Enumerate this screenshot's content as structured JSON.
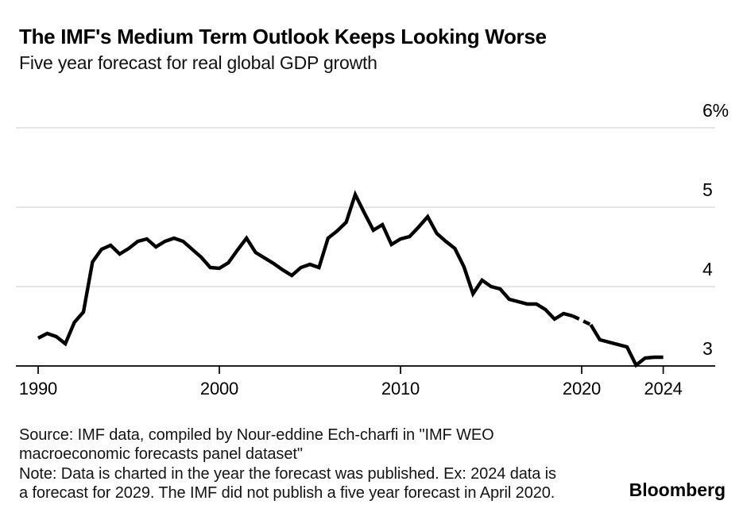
{
  "header": {
    "title": "The IMF's Medium Term Outlook Keeps Looking Worse",
    "subtitle": "Five year forecast for real global GDP growth"
  },
  "chart_data": {
    "type": "line",
    "title": "The IMF's Medium Term Outlook Keeps Looking Worse",
    "subtitle": "Five year forecast for real global GDP growth",
    "unit": "percent",
    "grid": "horizontal",
    "line_color": "#000000",
    "gridline_color": "#d7d7d7",
    "x_domain": [
      1990.25,
      2024.75
    ],
    "y_domain": [
      2.8,
      6.0
    ],
    "y_axis": {
      "side": "right",
      "ticks": [
        {
          "value": 6,
          "label": "6%"
        },
        {
          "value": 5,
          "label": "5"
        },
        {
          "value": 4,
          "label": "4"
        },
        {
          "value": 3,
          "label": "3"
        }
      ]
    },
    "x_axis": {
      "ticks": [
        {
          "year": 1990.25,
          "label": "1990"
        },
        {
          "year": 2000.25,
          "label": "2000"
        },
        {
          "year": 2010.25,
          "label": "2010"
        },
        {
          "year": 2020.25,
          "label": "2020"
        },
        {
          "year": 2024.75,
          "label": "2024"
        }
      ]
    },
    "series": [
      {
        "name": "Five year forecast for real global GDP growth",
        "segments": [
          {
            "style": "solid",
            "points": [
              [
                1990.25,
                3.35
              ],
              [
                1990.75,
                3.41
              ],
              [
                1991.25,
                3.37
              ],
              [
                1991.75,
                3.28
              ],
              [
                1992.25,
                3.55
              ],
              [
                1992.75,
                3.68
              ],
              [
                1993.25,
                4.31
              ],
              [
                1993.75,
                4.47
              ],
              [
                1994.25,
                4.52
              ],
              [
                1994.75,
                4.41
              ],
              [
                1995.25,
                4.48
              ],
              [
                1995.75,
                4.57
              ],
              [
                1996.25,
                4.6
              ],
              [
                1996.75,
                4.5
              ],
              [
                1997.25,
                4.57
              ],
              [
                1997.75,
                4.61
              ],
              [
                1998.25,
                4.57
              ],
              [
                1998.75,
                4.47
              ],
              [
                1999.25,
                4.37
              ],
              [
                1999.75,
                4.24
              ],
              [
                2000.25,
                4.23
              ],
              [
                2000.75,
                4.3
              ],
              [
                2001.25,
                4.46
              ],
              [
                2001.75,
                4.61
              ],
              [
                2002.25,
                4.43
              ],
              [
                2002.75,
                4.36
              ],
              [
                2003.25,
                4.29
              ],
              [
                2003.75,
                4.21
              ],
              [
                2004.25,
                4.14
              ],
              [
                2004.75,
                4.24
              ],
              [
                2005.25,
                4.28
              ],
              [
                2005.75,
                4.24
              ],
              [
                2006.25,
                4.61
              ],
              [
                2006.75,
                4.7
              ],
              [
                2007.25,
                4.81
              ],
              [
                2007.75,
                5.16
              ],
              [
                2008.25,
                4.93
              ],
              [
                2008.75,
                4.71
              ],
              [
                2009.25,
                4.78
              ],
              [
                2009.75,
                4.53
              ],
              [
                2010.25,
                4.6
              ],
              [
                2010.75,
                4.63
              ],
              [
                2011.25,
                4.75
              ],
              [
                2011.75,
                4.88
              ],
              [
                2012.25,
                4.67
              ],
              [
                2012.75,
                4.57
              ],
              [
                2013.25,
                4.48
              ],
              [
                2013.75,
                4.25
              ],
              [
                2014.25,
                3.91
              ],
              [
                2014.75,
                4.08
              ],
              [
                2015.25,
                4.0
              ],
              [
                2015.75,
                3.97
              ],
              [
                2016.25,
                3.84
              ],
              [
                2016.75,
                3.81
              ],
              [
                2017.25,
                3.78
              ],
              [
                2017.75,
                3.78
              ],
              [
                2018.25,
                3.71
              ],
              [
                2018.75,
                3.59
              ],
              [
                2019.25,
                3.66
              ],
              [
                2019.75,
                3.63
              ]
            ]
          },
          {
            "style": "dashed",
            "points": [
              [
                2019.75,
                3.63
              ],
              [
                2020.75,
                3.52
              ]
            ]
          },
          {
            "style": "solid",
            "points": [
              [
                2020.75,
                3.52
              ],
              [
                2021.25,
                3.33
              ],
              [
                2021.75,
                3.3
              ],
              [
                2022.25,
                3.27
              ],
              [
                2022.75,
                3.24
              ],
              [
                2023.25,
                3.01
              ],
              [
                2023.75,
                3.1
              ],
              [
                2024.25,
                3.11
              ],
              [
                2024.75,
                3.11
              ]
            ]
          }
        ]
      }
    ]
  },
  "footer": {
    "source_line_1": "Source: IMF data, compiled by Nour-eddine Ech-charfi in \"IMF WEO",
    "source_line_2": "macroeconomic forecasts panel dataset\"",
    "note_line_1": "Note: Data is charted in the year the forecast was published. Ex: 2024 data is",
    "note_line_2": "a forecast for 2029. The IMF did not publish a five year forecast in April 2020.",
    "brand": "Bloomberg"
  }
}
